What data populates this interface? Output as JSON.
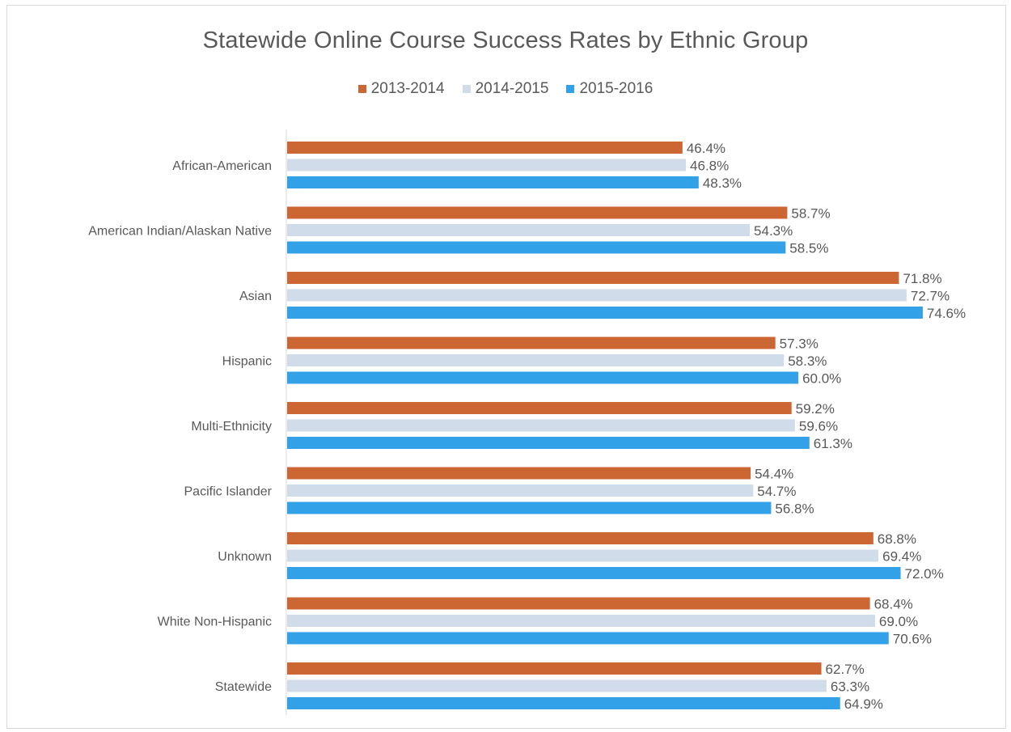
{
  "chart_data": {
    "type": "bar",
    "orientation": "horizontal",
    "title": "Statewide Online Course Success Rates by Ethnic Group",
    "categories": [
      "African-American",
      "American Indian/Alaskan Native",
      "Asian",
      "Hispanic",
      "Multi-Ethnicity",
      "Pacific Islander",
      "Unknown",
      "White Non-Hispanic",
      "Statewide"
    ],
    "series": [
      {
        "name": "2013-2014",
        "color": "#cc6633",
        "values": [
          46.4,
          58.7,
          71.8,
          57.3,
          59.2,
          54.4,
          68.8,
          68.4,
          62.7
        ]
      },
      {
        "name": "2014-2015",
        "color": "#d0dcea",
        "values": [
          46.8,
          54.3,
          72.7,
          58.3,
          59.6,
          54.7,
          69.4,
          69.0,
          63.3
        ]
      },
      {
        "name": "2015-2016",
        "color": "#33a1e8",
        "values": [
          48.3,
          58.5,
          74.6,
          60.0,
          61.3,
          56.8,
          72.0,
          70.6,
          64.9
        ]
      }
    ],
    "value_suffix": "%",
    "xlim": [
      0,
      80
    ],
    "grid": false,
    "legend_position": "top"
  }
}
